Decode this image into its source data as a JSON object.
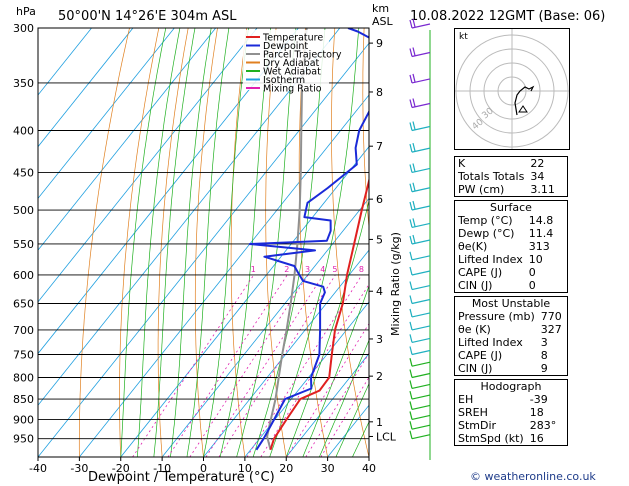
{
  "header": {
    "units": "hPa",
    "location": "50°00'N 14°26'E 304m ASL",
    "km_label": "km",
    "asl_label": "ASL",
    "date": "10.08.2022 12GMT (Base: 06)"
  },
  "legend": [
    {
      "label": "Temperature",
      "color": "#e02020"
    },
    {
      "label": "Dewpoint",
      "color": "#1a2ad8"
    },
    {
      "label": "Parcel Trajectory",
      "color": "#909090"
    },
    {
      "label": "Dry Adiabat",
      "color": "#e08020"
    },
    {
      "label": "Wet Adiabat",
      "color": "#20b020"
    },
    {
      "label": "Isotherm",
      "color": "#20a0e0"
    },
    {
      "label": "Mixing Ratio",
      "color": "#e020b0"
    }
  ],
  "chart_data": {
    "type": "skew-t",
    "xlabel": "Dewpoint / Temperature (°C)",
    "ylabel": "hPa",
    "y2label": "Mixing Ratio (g/kg)",
    "xlim": [
      -40,
      40
    ],
    "ylim": [
      300,
      1000
    ],
    "pressure_ticks": [
      300,
      350,
      400,
      450,
      500,
      550,
      600,
      650,
      700,
      750,
      800,
      850,
      900,
      950
    ],
    "temp_ticks": [
      -40,
      -30,
      -20,
      -10,
      0,
      10,
      20,
      30,
      40
    ],
    "km_ticks": [
      {
        "label": "9",
        "p": 313
      },
      {
        "label": "8",
        "p": 359
      },
      {
        "label": "7",
        "p": 418
      },
      {
        "label": "6",
        "p": 485
      },
      {
        "label": "5",
        "p": 543
      },
      {
        "label": "4",
        "p": 628
      },
      {
        "label": "3",
        "p": 718
      },
      {
        "label": "2",
        "p": 797
      },
      {
        "label": "1",
        "p": 906
      },
      {
        "label": "LCL",
        "p": 944
      }
    ],
    "mixing_ratio_labels": [
      "1",
      "2",
      "3",
      "4",
      "5",
      "8",
      "10",
      "15",
      "20",
      "25"
    ],
    "temperature": [
      {
        "p": 980,
        "t": 14.8
      },
      {
        "p": 950,
        "t": 13.5
      },
      {
        "p": 900,
        "t": 12.8
      },
      {
        "p": 850,
        "t": 12.2
      },
      {
        "p": 830,
        "t": 15.2
      },
      {
        "p": 800,
        "t": 15.0
      },
      {
        "p": 750,
        "t": 11.2
      },
      {
        "p": 700,
        "t": 7.2
      },
      {
        "p": 650,
        "t": 4.0
      },
      {
        "p": 600,
        "t": -0.5
      },
      {
        "p": 550,
        "t": -4.8
      },
      {
        "p": 500,
        "t": -9.5
      },
      {
        "p": 450,
        "t": -14.5
      },
      {
        "p": 400,
        "t": -20.5
      },
      {
        "p": 350,
        "t": -27.0
      },
      {
        "p": 300,
        "t": -35.0
      }
    ],
    "dewpoint": [
      {
        "p": 980,
        "t": 11.4
      },
      {
        "p": 950,
        "t": 11.0
      },
      {
        "p": 900,
        "t": 9.8
      },
      {
        "p": 850,
        "t": 8.5
      },
      {
        "p": 825,
        "t": 12.8
      },
      {
        "p": 800,
        "t": 10.6
      },
      {
        "p": 750,
        "t": 8.2
      },
      {
        "p": 700,
        "t": 3.6
      },
      {
        "p": 650,
        "t": -1.5
      },
      {
        "p": 630,
        "t": -2.5
      },
      {
        "p": 620,
        "t": -4.0
      },
      {
        "p": 610,
        "t": -10.0
      },
      {
        "p": 595,
        "t": -13.0
      },
      {
        "p": 585,
        "t": -15.0
      },
      {
        "p": 570,
        "t": -24.0
      },
      {
        "p": 560,
        "t": -13.0
      },
      {
        "p": 550,
        "t": -30.0
      },
      {
        "p": 545,
        "t": -12.0
      },
      {
        "p": 530,
        "t": -13.0
      },
      {
        "p": 515,
        "t": -15.0
      },
      {
        "p": 510,
        "t": -22.0
      },
      {
        "p": 490,
        "t": -24.0
      },
      {
        "p": 470,
        "t": -22.0
      },
      {
        "p": 440,
        "t": -19.5
      },
      {
        "p": 420,
        "t": -23.0
      },
      {
        "p": 400,
        "t": -25.5
      },
      {
        "p": 360,
        "t": -28.0
      },
      {
        "p": 340,
        "t": -31.0
      },
      {
        "p": 315,
        "t": -36.0
      },
      {
        "p": 303,
        "t": -45.0
      },
      {
        "p": 300,
        "t": -48.0
      }
    ],
    "parcel": [
      {
        "p": 980,
        "t": 14.8
      },
      {
        "p": 944,
        "t": 11.4
      },
      {
        "p": 900,
        "t": 9.0
      },
      {
        "p": 850,
        "t": 6.2
      },
      {
        "p": 800,
        "t": 2.8
      },
      {
        "p": 750,
        "t": -0.8
      },
      {
        "p": 700,
        "t": -4.5
      },
      {
        "p": 650,
        "t": -8.6
      },
      {
        "p": 600,
        "t": -13.2
      },
      {
        "p": 550,
        "t": -18.5
      },
      {
        "p": 500,
        "t": -24.5
      },
      {
        "p": 450,
        "t": -31.5
      },
      {
        "p": 400,
        "t": -39.5
      },
      {
        "p": 350,
        "t": -48.5
      },
      {
        "p": 300,
        "t": -58.0
      }
    ]
  },
  "hodograph": {
    "label": "kt",
    "ring_labels": [
      "40",
      "30"
    ]
  },
  "indices": [
    {
      "label": "K",
      "value": "22"
    },
    {
      "label": "Totals Totals",
      "value": "34"
    },
    {
      "label": "PW (cm)",
      "value": "3.11"
    }
  ],
  "surface": {
    "title": "Surface",
    "rows": [
      {
        "label": "Temp (°C)",
        "value": "14.8"
      },
      {
        "label": "Dewp (°C)",
        "value": "11.4"
      },
      {
        "label": "θe(K)",
        "value": "313"
      },
      {
        "label": "Lifted Index",
        "value": "10"
      },
      {
        "label": "CAPE (J)",
        "value": "0"
      },
      {
        "label": "CIN (J)",
        "value": "0"
      }
    ]
  },
  "most_unstable": {
    "title": "Most Unstable",
    "rows": [
      {
        "label": "Pressure (mb)",
        "value": "770"
      },
      {
        "label": "θe (K)",
        "value": "327"
      },
      {
        "label": "Lifted Index",
        "value": "3"
      },
      {
        "label": "CAPE (J)",
        "value": "8"
      },
      {
        "label": "CIN (J)",
        "value": "9"
      }
    ]
  },
  "hodograph_stats": {
    "title": "Hodograph",
    "rows": [
      {
        "label": "EH",
        "value": "-39"
      },
      {
        "label": "SREH",
        "value": "18"
      },
      {
        "label": "StmDir",
        "value": "283°"
      },
      {
        "label": "StmSpd (kt)",
        "value": "16"
      }
    ]
  },
  "copyright": "© weatheronline.co.uk"
}
